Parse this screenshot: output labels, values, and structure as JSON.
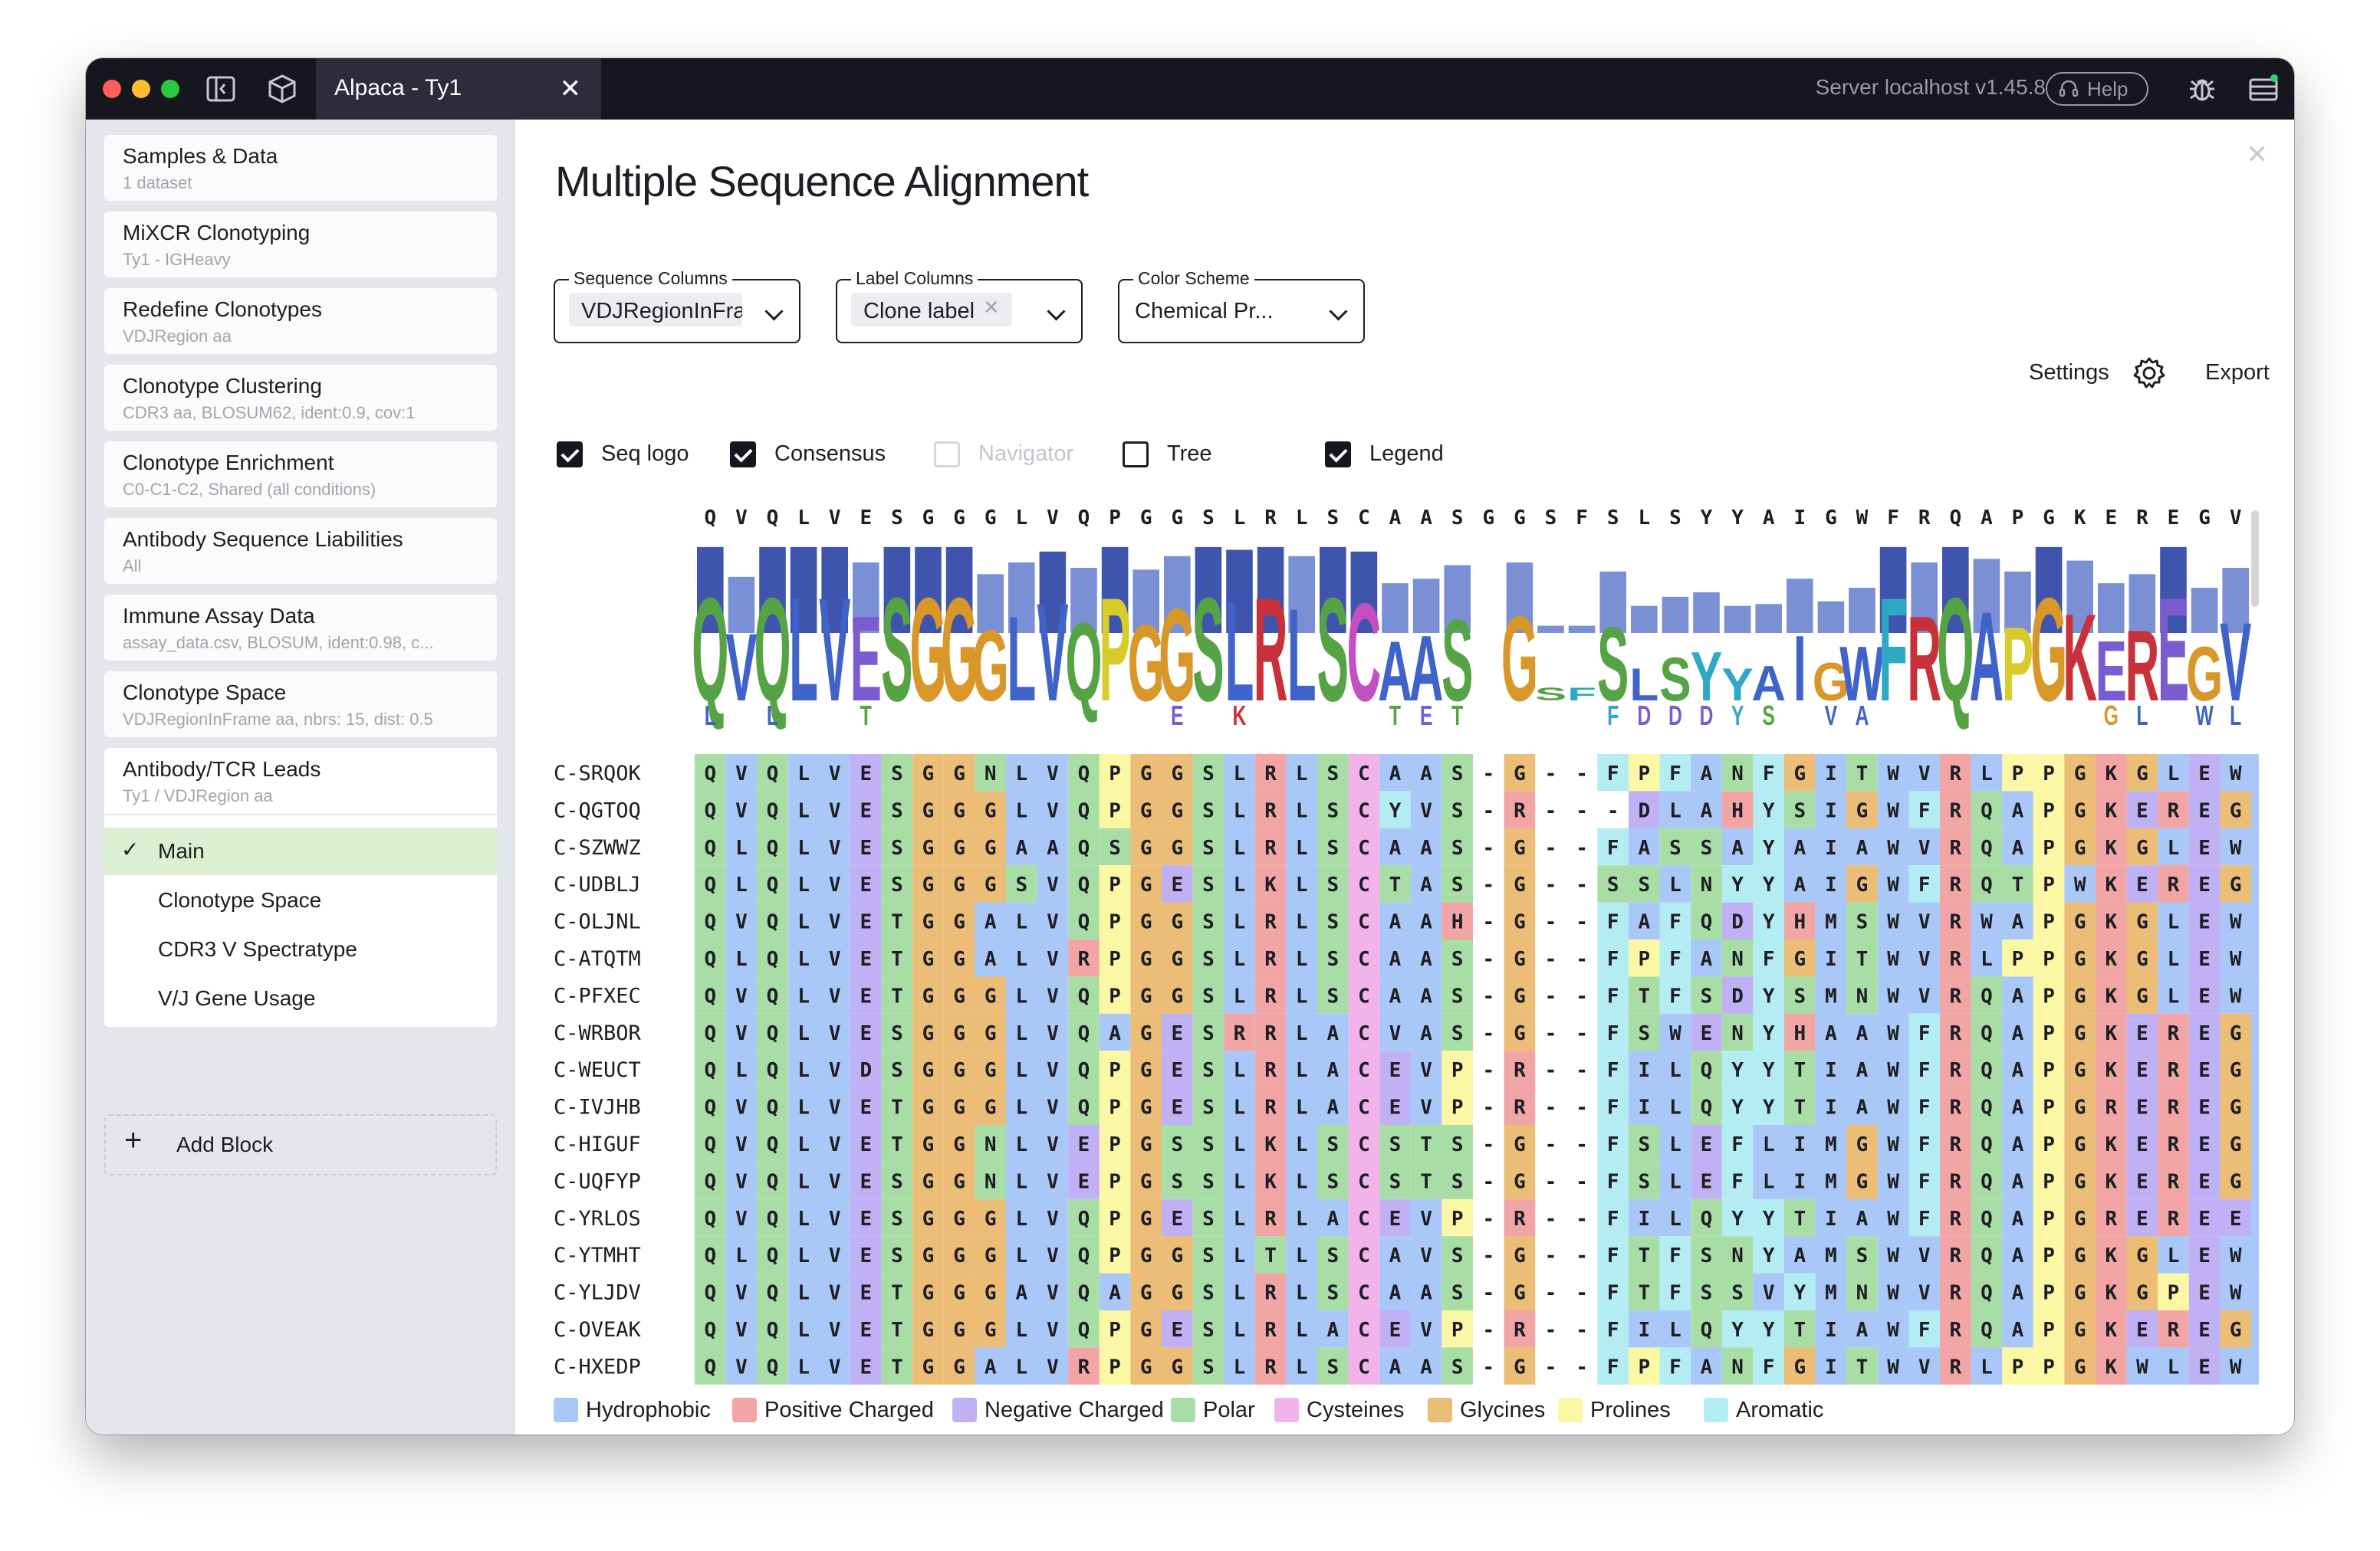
{
  "app": {
    "tab_title": "Alpaca - Ty1",
    "server": "Server localhost v1.45.8",
    "help_label": "Help"
  },
  "sidebar": {
    "blocks": [
      {
        "title": "Samples & Data",
        "subtitle": "1 dataset"
      },
      {
        "title": "MiXCR Clonotyping",
        "subtitle": "Ty1 - IGHeavy"
      },
      {
        "title": "Redefine Clonotypes",
        "subtitle": "VDJRegion aa"
      },
      {
        "title": "Clonotype Clustering",
        "subtitle": "CDR3 aa, BLOSUM62, ident:0.9, cov:1"
      },
      {
        "title": "Clonotype Enrichment",
        "subtitle": "C0-C1-C2, Shared (all conditions)"
      },
      {
        "title": "Antibody Sequence Liabilities",
        "subtitle": "All"
      },
      {
        "title": "Immune Assay Data",
        "subtitle": "assay_data.csv, BLOSUM, ident:0.98, c..."
      },
      {
        "title": "Clonotype Space",
        "subtitle": "VDJRegionInFrame aa, nbrs: 15, dist: 0.5"
      },
      {
        "title": "Antibody/TCR Leads",
        "subtitle": "Ty1 / VDJRegion aa"
      }
    ],
    "sub_items": [
      "Main",
      "Clonotype Space",
      "CDR3 V Spectratype",
      "V/J Gene Usage"
    ],
    "add_block_label": "Add Block"
  },
  "main": {
    "title": "Multiple Sequence Alignment",
    "sequence_columns": {
      "label": "Sequence Columns",
      "value": "VDJRegionInFram"
    },
    "label_columns": {
      "label": "Label Columns",
      "value": "Clone label"
    },
    "color_scheme": {
      "label": "Color Scheme",
      "value": "Chemical Pr..."
    },
    "settings_label": "Settings",
    "export_label": "Export",
    "toggles": [
      {
        "label": "Seq logo",
        "state": "checked"
      },
      {
        "label": "Consensus",
        "state": "checked"
      },
      {
        "label": "Navigator",
        "state": "disabled"
      },
      {
        "label": "Tree",
        "state": "unchecked"
      },
      {
        "label": "Legend",
        "state": "checked"
      }
    ]
  },
  "alignment": {
    "consensus": "QVQLVESGGGLVQPGGSLRLSCAASGGSFSLSYYAIGWFRQAPGKEREGV",
    "conservation": [
      0.95,
      0.62,
      0.95,
      0.95,
      0.95,
      0.78,
      0.95,
      0.95,
      0.95,
      0.65,
      0.78,
      0.9,
      0.72,
      0.95,
      0.7,
      0.85,
      0.95,
      0.92,
      0.95,
      0.85,
      0.95,
      0.9,
      0.55,
      0.6,
      0.75,
      0,
      0.78,
      0.08,
      0.08,
      0.68,
      0.3,
      0.4,
      0.45,
      0.3,
      0.32,
      0.6,
      0.35,
      0.5,
      0.95,
      0.78,
      0.95,
      0.82,
      0.68,
      0.95,
      0.8,
      0.55,
      0.65,
      0.95,
      0.5,
      0.72
    ],
    "logo_secondary": [
      "L",
      "",
      "L",
      "",
      "",
      "T",
      "",
      "",
      "",
      "",
      "",
      "",
      "",
      "",
      "",
      "E",
      "",
      "K",
      "",
      "",
      "",
      "",
      "T",
      "E",
      "T",
      "",
      "",
      "",
      "",
      "F",
      "D",
      "D",
      "D",
      "Y",
      "S",
      "",
      "V",
      "A",
      "",
      "",
      "",
      "",
      "",
      "",
      "",
      "G",
      "L",
      "",
      "W",
      "L"
    ],
    "rows": [
      {
        "label": "C-SRQOK",
        "seq": "QVQLVESGGNLVQPGGSLRLSCAAS-G--FPFANFGITWVRLPPGKGLEWV"
      },
      {
        "label": "C-QGTOQ",
        "seq": "QVQLVESGGGLVQPGGSLRLSCYVS-R---DLAHYSIGWFRQAPGKEREGV"
      },
      {
        "label": "C-SZWWZ",
        "seq": "QLQLVESGGGAAQSGGSLRLSCAAS-G--FASSAYAIAWVRQAPGKGLEWV"
      },
      {
        "label": "C-UDBLJ",
        "seq": "QLQLVESGGGSVQPGESLKLSCTAS-G--SSLNYYAIGWFRQTPWKEREGV"
      },
      {
        "label": "C-OLJNL",
        "seq": "QVQLVETGGALVQPGGSLRLSCAAH-G--FAFQDYHMSWVRWAPGKGLEWV"
      },
      {
        "label": "C-ATQTM",
        "seq": "QLQLVETGGALVRPGGSLRLSCAAS-G--FPFANFGITWVRLPPGKGLEWV"
      },
      {
        "label": "C-PFXEC",
        "seq": "QVQLVETGGGLVQPGGSLRLSCAAS-G--FTFSDYSMNWVRQAPGKGLEWV"
      },
      {
        "label": "C-WRBOR",
        "seq": "QVQLVESGGGLVQAGESRRLACVAS-G--FSWENYHAAWFRQAPGKEREGI"
      },
      {
        "label": "C-WEUCT",
        "seq": "QLQLVDSGGGLVQPGESLRLACEVP-R--FILQYYTIAWFRQAPGKEREGL"
      },
      {
        "label": "C-IVJHB",
        "seq": "QVQLVETGGGLVQPGESLRLACEVP-R--FILQYYTIAWFRQAPGREREGL"
      },
      {
        "label": "C-HIGUF",
        "seq": "QVQLVETGGNLVEPGSSLKLSCSTS-G--FSLEFLIMGWFRQAPGKEREGV"
      },
      {
        "label": "C-UQFYP",
        "seq": "QVQLVESGGNLVEPGSSLKLSCSTS-G--FSLEFLIMGWFRQAPGKEREGL"
      },
      {
        "label": "C-YRLOS",
        "seq": "QVQLVESGGGLVQPGESLRLACEVP-R--FILQYYTIAWFRQAPGREREEV"
      },
      {
        "label": "C-YTMHT",
        "seq": "QLQLVESGGGLVQPGGSLTLSCAVS-G--FTFSNYAMSWVRQAPGKGLEWV"
      },
      {
        "label": "C-YLJDV",
        "seq": "QVQLVETGGGAVQAGGSLRLSCAAS-G--FTFSSVYMNWVRQAPGKGPEWV"
      },
      {
        "label": "C-OVEAK",
        "seq": "QVQLVETGGGLVQPGESLRLACEVP-R--FILQYYTIAWFRQAPGKEREGV"
      },
      {
        "label": "C-HXEDP",
        "seq": "QVQLVETGGALVRPGGSLRLSCAAS-G--FPFANFGITWVRLPPGKWLEWV"
      }
    ]
  },
  "legend": [
    {
      "name": "Hydrophobic",
      "color": "#a9c7f7"
    },
    {
      "name": "Positive Charged",
      "color": "#f2a5a5"
    },
    {
      "name": "Negative Charged",
      "color": "#c0b1f5"
    },
    {
      "name": "Polar",
      "color": "#a8dea6"
    },
    {
      "name": "Cysteines",
      "color": "#f2b3ea"
    },
    {
      "name": "Glycines",
      "color": "#ecbd76"
    },
    {
      "name": "Prolines",
      "color": "#fbf7a5"
    },
    {
      "name": "Aromatic",
      "color": "#b4ecf3"
    }
  ],
  "colors": {
    "titlebar": "#16161f",
    "sidebar": "#e5e6ec",
    "active_item": "#dcf0d1",
    "conservation_bar": "#3f55ad",
    "conservation_bar_light": "#7b8fd4"
  }
}
